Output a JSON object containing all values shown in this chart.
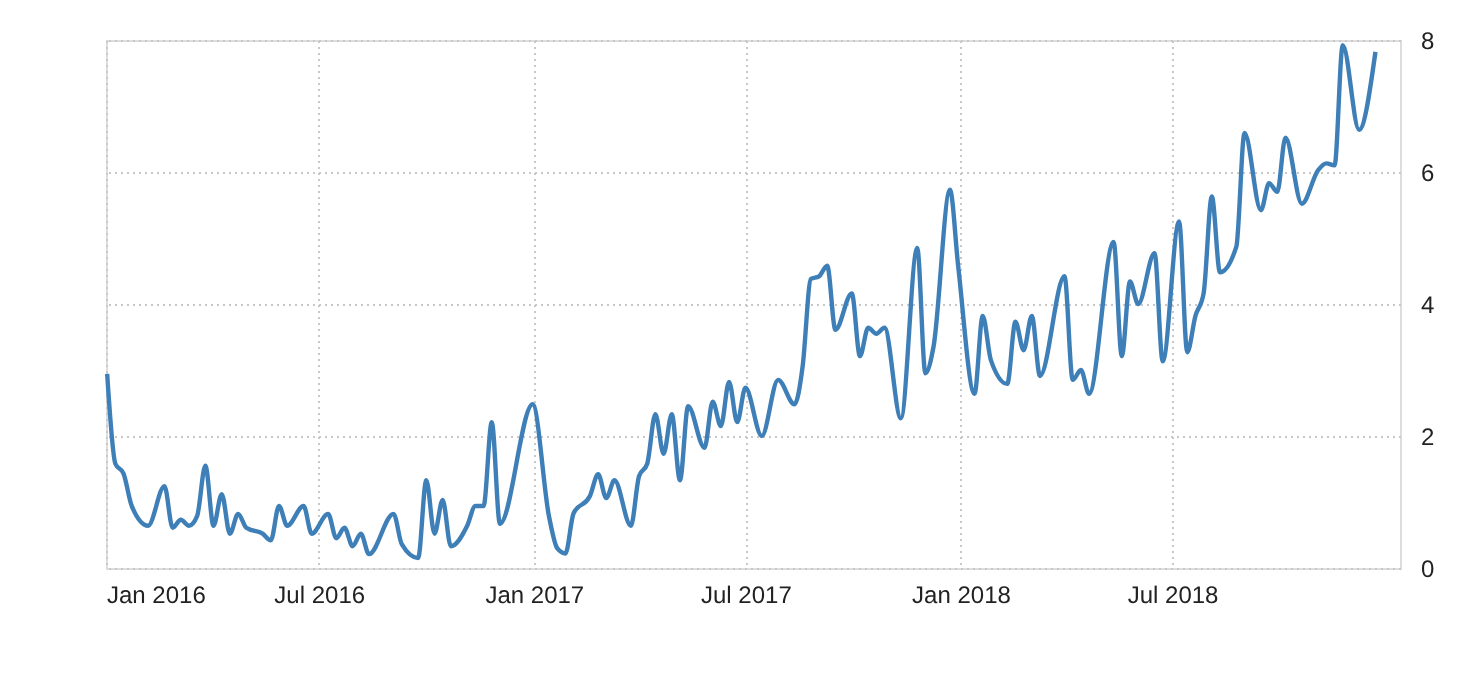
{
  "chart_data": {
    "type": "line",
    "x": [
      "2016-01-02",
      "2016-01-09",
      "2016-01-16",
      "2016-01-23",
      "2016-02-06",
      "2016-02-20",
      "2016-02-27",
      "2016-03-05",
      "2016-03-12",
      "2016-03-19",
      "2016-03-26",
      "2016-04-02",
      "2016-04-09",
      "2016-04-16",
      "2016-04-23",
      "2016-04-30",
      "2016-05-14",
      "2016-05-21",
      "2016-05-28",
      "2016-06-04",
      "2016-06-18",
      "2016-06-25",
      "2016-07-09",
      "2016-07-16",
      "2016-07-23",
      "2016-07-30",
      "2016-08-06",
      "2016-08-13",
      "2016-09-03",
      "2016-09-10",
      "2016-09-24",
      "2016-10-01",
      "2016-10-08",
      "2016-10-15",
      "2016-10-22",
      "2016-11-05",
      "2016-11-12",
      "2016-11-19",
      "2016-11-26",
      "2016-12-03",
      "2016-12-31",
      "2017-01-14",
      "2017-01-21",
      "2017-01-28",
      "2017-02-04",
      "2017-02-18",
      "2017-02-25",
      "2017-03-04",
      "2017-03-11",
      "2017-03-25",
      "2017-04-01",
      "2017-04-08",
      "2017-04-15",
      "2017-04-22",
      "2017-04-29",
      "2017-05-06",
      "2017-05-13",
      "2017-05-27",
      "2017-06-03",
      "2017-06-10",
      "2017-06-17",
      "2017-06-24",
      "2017-07-01",
      "2017-07-15",
      "2017-07-29",
      "2017-08-12",
      "2017-08-19",
      "2017-08-26",
      "2017-09-02",
      "2017-09-09",
      "2017-09-16",
      "2017-09-30",
      "2017-10-07",
      "2017-10-14",
      "2017-10-21",
      "2017-10-28",
      "2017-11-11",
      "2017-11-25",
      "2017-12-02",
      "2017-12-09",
      "2017-12-23",
      "2017-12-30",
      "2018-01-13",
      "2018-01-20",
      "2018-01-27",
      "2018-02-10",
      "2018-02-17",
      "2018-02-24",
      "2018-03-03",
      "2018-03-10",
      "2018-03-31",
      "2018-04-07",
      "2018-04-14",
      "2018-04-21",
      "2018-05-12",
      "2018-05-19",
      "2018-05-26",
      "2018-06-02",
      "2018-06-16",
      "2018-06-23",
      "2018-07-07",
      "2018-07-14",
      "2018-07-21",
      "2018-07-28",
      "2018-08-04",
      "2018-08-11",
      "2018-08-25",
      "2018-09-01",
      "2018-09-15",
      "2018-09-22",
      "2018-09-29",
      "2018-10-06",
      "2018-10-20",
      "2018-11-03",
      "2018-11-10",
      "2018-11-17",
      "2018-11-24",
      "2018-12-08",
      "2018-12-22"
    ],
    "series": [
      {
        "color": "#3f7fb8",
        "values": [
          2.94,
          1.58,
          1.43,
          0.94,
          0.64,
          1.24,
          0.61,
          0.73,
          0.64,
          0.79,
          1.55,
          0.64,
          1.12,
          0.52,
          0.82,
          0.61,
          0.52,
          0.42,
          0.94,
          0.64,
          0.94,
          0.52,
          0.82,
          0.45,
          0.61,
          0.33,
          0.52,
          0.21,
          0.82,
          0.36,
          0.15,
          1.33,
          0.52,
          1.03,
          0.33,
          0.64,
          0.94,
          0.94,
          2.21,
          0.67,
          2.48,
          0.78,
          0.3,
          0.22,
          0.83,
          1.09,
          1.42,
          1.06,
          1.33,
          0.64,
          1.39,
          1.58,
          2.33,
          1.73,
          2.33,
          1.33,
          2.45,
          1.82,
          2.52,
          2.15,
          2.82,
          2.21,
          2.73,
          2.0,
          2.85,
          2.48,
          3.06,
          4.38,
          4.42,
          4.58,
          3.61,
          4.16,
          3.21,
          3.64,
          3.55,
          3.64,
          2.27,
          4.85,
          2.95,
          3.36,
          5.73,
          4.58,
          2.64,
          3.82,
          3.15,
          2.79,
          3.73,
          3.3,
          3.82,
          2.91,
          4.42,
          2.85,
          3.0,
          2.64,
          4.94,
          3.21,
          4.34,
          4.0,
          4.77,
          3.13,
          5.25,
          3.27,
          3.82,
          4.16,
          5.63,
          4.48,
          4.87,
          6.59,
          5.42,
          5.83,
          5.7,
          6.52,
          5.52,
          6.03,
          6.13,
          6.1,
          7.92,
          6.64,
          7.82
        ]
      }
    ],
    "xlim": [
      "2016-01-01",
      "2019-01-12"
    ],
    "xticks": [
      {
        "value": "2016-01-01",
        "label": "Jan 2016"
      },
      {
        "value": "2016-07-01",
        "label": "Jul 2016"
      },
      {
        "value": "2017-01-01",
        "label": "Jan 2017"
      },
      {
        "value": "2017-07-01",
        "label": "Jul 2017"
      },
      {
        "value": "2018-01-01",
        "label": "Jan 2018"
      },
      {
        "value": "2018-07-01",
        "label": "Jul 2018"
      }
    ],
    "ylim": [
      0,
      8
    ],
    "yticks": [
      0,
      2,
      4,
      6,
      8
    ],
    "grid": true,
    "legend": false,
    "marker": "none",
    "line_style": "solid"
  }
}
